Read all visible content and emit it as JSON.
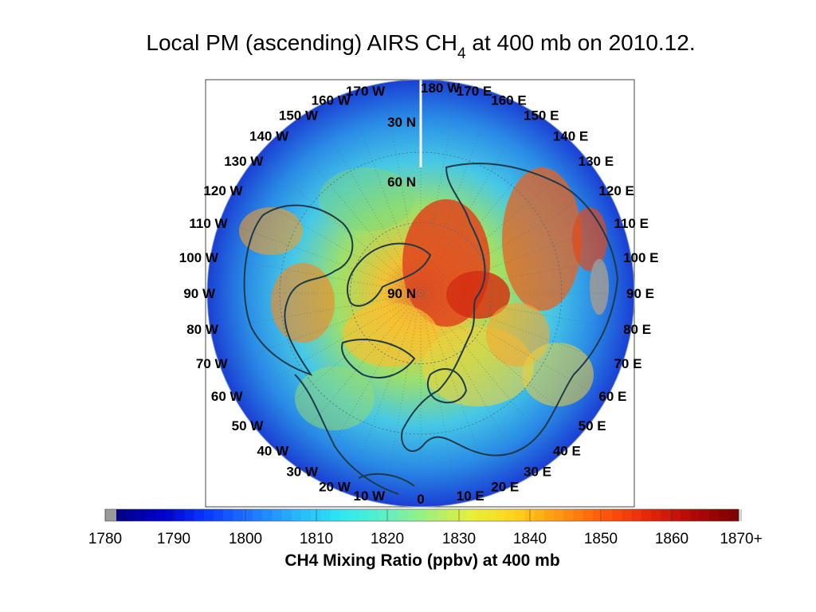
{
  "title": {
    "main": "Local PM (ascending) AIRS CH",
    "subscript": "4",
    "suffix": " at 400 mb on 2010.12."
  },
  "map": {
    "projection": "north-polar-stereographic",
    "center_label": "90 N",
    "lat_labels": [
      "30 N",
      "60 N",
      "90 N"
    ],
    "lon_labels_west": [
      "10 W",
      "20 W",
      "30 W",
      "40 W",
      "50 W",
      "60 W",
      "70 W",
      "80 W",
      "90 W",
      "100 W",
      "110 W",
      "120 W",
      "130 W",
      "140 W",
      "150 W",
      "160 W",
      "170 W"
    ],
    "lon_labels_east": [
      "0",
      "10 E",
      "20 E",
      "30 E",
      "40 E",
      "50 E",
      "60 E",
      "70 E",
      "80 E",
      "90 E",
      "100 E",
      "110 E",
      "120 E",
      "130 E",
      "140 E",
      "150 E",
      "160 E",
      "170 E",
      "180 W"
    ],
    "colors": {
      "ocean_low": "#1e6fd9",
      "mid": "#38c6e8",
      "high": "#f2e43a",
      "very_high": "#e85a1a",
      "land_outline": "#1d3a4a",
      "missing": "#9a9a9a"
    }
  },
  "colorbar": {
    "tick_labels": [
      "1780",
      "1790",
      "1800",
      "1810",
      "1820",
      "1830",
      "1840",
      "1850",
      "1860",
      "1870+"
    ],
    "title": "CH4 Mixing Ratio (ppbv) at 400 mb",
    "colors": [
      "#9a9a9a",
      "#00008b",
      "#0000cd",
      "#0a3cff",
      "#1e78ff",
      "#28b4ff",
      "#2ee6f0",
      "#5af0c8",
      "#a0f078",
      "#e6f03c",
      "#ffd21e",
      "#ff9614",
      "#ff5a0a",
      "#e6280a",
      "#b40a0a",
      "#800000"
    ]
  }
}
